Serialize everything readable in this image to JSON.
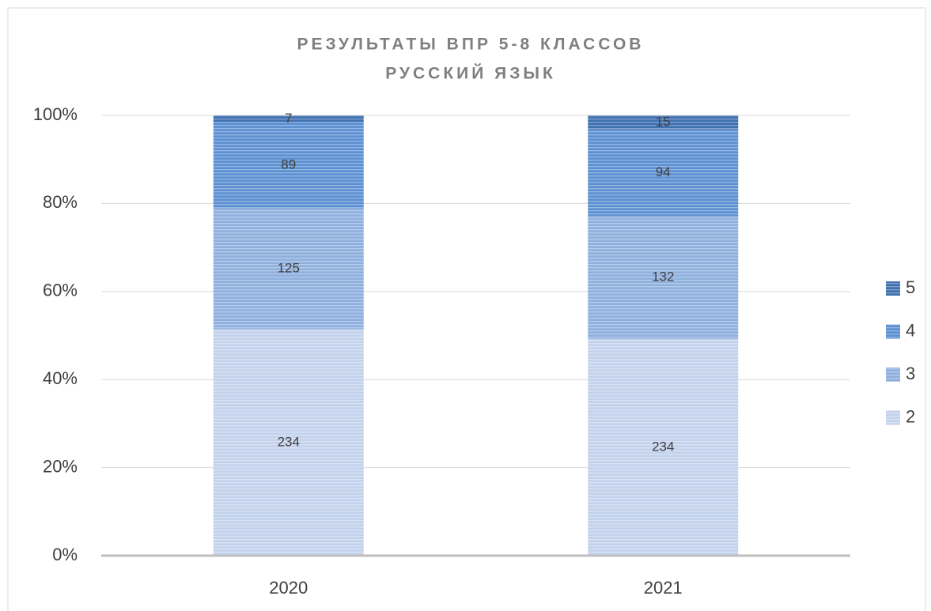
{
  "chart_data": {
    "type": "stacked_percent_bar",
    "title": [
      "РЕЗУЛЬТАТЫ ВПР 5-8 КЛАССОВ",
      "РУССКИЙ ЯЗЫК"
    ],
    "categories": [
      "2020",
      "2021"
    ],
    "series": [
      {
        "name": "2",
        "color": "#c3d2ec",
        "values": [
          234,
          234
        ]
      },
      {
        "name": "3",
        "color": "#8fb0de",
        "values": [
          125,
          132
        ]
      },
      {
        "name": "4",
        "color": "#5d90d2",
        "values": [
          89,
          94
        ]
      },
      {
        "name": "5",
        "color": "#3f70b0",
        "values": [
          7,
          15
        ]
      }
    ],
    "ylim": [
      0,
      100
    ],
    "yticks": [
      {
        "value": 0,
        "label": "0%"
      },
      {
        "value": 20,
        "label": "20%"
      },
      {
        "value": 40,
        "label": "40%"
      },
      {
        "value": 60,
        "label": "60%"
      },
      {
        "value": 80,
        "label": "80%"
      },
      {
        "value": 100,
        "label": "100%"
      }
    ],
    "grid": true,
    "legend": "right"
  }
}
